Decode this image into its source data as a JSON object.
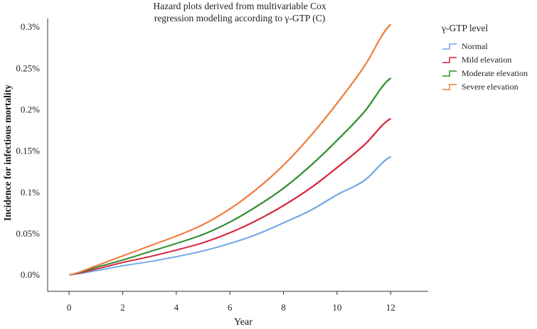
{
  "chart_data": {
    "type": "line",
    "title": "Hazard plots derived from multivariable Cox regression modeling according to γ-GTP (C)",
    "title_lines": [
      "Hazard plots derived from multivariable Cox",
      "regression modeling according to γ-GTP (C)"
    ],
    "xlabel": "Year",
    "ylabel": "Incidence for infectious mortality",
    "xlim": [
      -0.8,
      13.4
    ],
    "ylim": [
      -0.0002,
      0.0031
    ],
    "x_ticks": [
      0,
      2,
      4,
      6,
      8,
      10,
      12
    ],
    "x_tick_labels": [
      "0",
      "2",
      "4",
      "6",
      "8",
      "10",
      "12"
    ],
    "y_ticks": [
      0.0,
      0.0005,
      0.001,
      0.0015,
      0.002,
      0.0025,
      0.003
    ],
    "y_tick_labels": [
      "0.0%",
      "0.05%",
      "0.1%",
      "0.15%",
      "0.2%",
      "0.25%",
      "0.3%"
    ],
    "grid": false,
    "legend_title": "γ-GTP level",
    "legend_position": "right",
    "x": [
      0,
      1,
      2,
      3,
      4,
      5,
      6,
      7,
      8,
      9,
      10,
      11,
      12
    ],
    "series": [
      {
        "name": "Normal",
        "color": "#6ea6e6",
        "values": [
          0.0,
          5e-05,
          0.00011,
          0.00016,
          0.00022,
          0.00029,
          0.00038,
          0.00049,
          0.00063,
          0.00078,
          0.00097,
          0.00114,
          0.00143
        ]
      },
      {
        "name": "Mild elevation",
        "color": "#d8213c",
        "values": [
          0.0,
          7e-05,
          0.00015,
          0.00022,
          0.0003,
          0.00039,
          0.00051,
          0.00066,
          0.00084,
          0.00105,
          0.0013,
          0.00157,
          0.00189
        ]
      },
      {
        "name": "Moderate elevation",
        "color": "#2e8b2e",
        "values": [
          0.0,
          9e-05,
          0.00018,
          0.00028,
          0.00038,
          0.00049,
          0.00064,
          0.00083,
          0.00105,
          0.00132,
          0.00163,
          0.00197,
          0.00238
        ]
      },
      {
        "name": "Severe elevation",
        "color": "#f07a3c",
        "values": [
          0.0,
          0.00011,
          0.00023,
          0.00035,
          0.00047,
          0.00061,
          0.0008,
          0.00104,
          0.00133,
          0.00168,
          0.00208,
          0.00252,
          0.00303
        ]
      }
    ]
  }
}
